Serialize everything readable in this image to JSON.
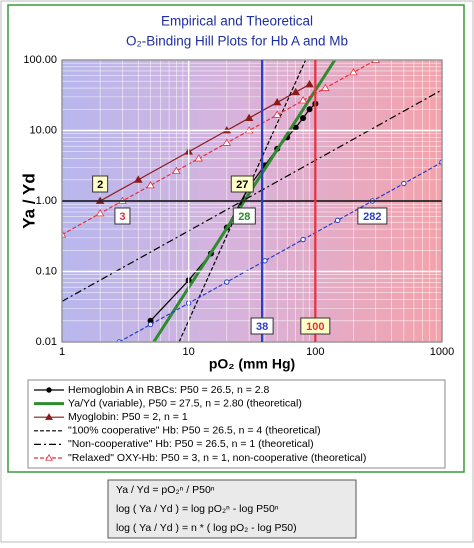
{
  "chart_data": {
    "type": "line",
    "title": [
      "Empirical and Theoretical",
      "O₂-Binding Hill Plots for Hb A and Mb"
    ],
    "x_label": "pO₂ (mm Hg)",
    "y_label": "Ya / Yd",
    "log_x": true,
    "log_y": true,
    "grid": true,
    "minor_grid": true,
    "xlim": [
      1,
      1000
    ],
    "xticks": [
      1,
      10,
      100,
      1000
    ],
    "ylim": [
      0.01,
      100
    ],
    "yticks": [
      {
        "value": 0.01,
        "label": "0.01"
      },
      {
        "value": 0.1,
        "label": "0.10"
      },
      {
        "value": 1,
        "label": "1.00"
      },
      {
        "value": 10,
        "label": "10.00"
      },
      {
        "value": 100,
        "label": "100.00"
      }
    ],
    "series": [
      {
        "name": "Hemoglobin A in RBCs: P50 = 26.5, n = 2.8",
        "color": "#000000",
        "line_style": "solid",
        "marker": "circle",
        "x": [
          5,
          10,
          15,
          20,
          30,
          40,
          50,
          60,
          70,
          80,
          90,
          100
        ],
        "values": [
          0.02,
          0.075,
          0.18,
          0.42,
          1.6,
          3.2,
          5.5,
          8,
          11,
          15,
          20,
          24
        ]
      },
      {
        "name": "Ya/Yd (variable), P50 = 27.5, n = 2.80 (theoretical)",
        "color": "#2e8b2e",
        "line_style": "thick",
        "marker": "none",
        "x": [
          5.3,
          142.5
        ],
        "values": [
          0.01,
          100
        ]
      },
      {
        "name": "Myoglobin: P50 = 2, n = 1",
        "color": "#8b1a1a",
        "line_style": "solid",
        "marker": "triangle",
        "x": [
          2,
          4,
          10,
          20,
          30,
          50,
          70,
          90
        ],
        "values": [
          1,
          2,
          5,
          10,
          15,
          25,
          35,
          45
        ]
      },
      {
        "name": "\"100% cooperative\" Hb: P50 = 26.5, n = 4 (theoretical)",
        "color": "#000000",
        "line_style": "dashed",
        "marker": "none",
        "x": [
          8.4,
          83.8
        ],
        "values": [
          0.01,
          100
        ]
      },
      {
        "name": "\"Non-cooperative\" Hb: P50 = 26.5, n = 1 (theoretical)",
        "color": "#000000",
        "line_style": "dash-dot",
        "marker": "none",
        "x": [
          1,
          1000
        ],
        "values": [
          0.0377,
          37.7
        ]
      },
      {
        "name": "\"Relaxed\" OXY-Hb: P50 = 3, n = 1, non-cooperative (theoretical)",
        "color": "#e8303a",
        "line_style": "dashed",
        "marker": "open-triangle",
        "x": [
          1,
          2,
          3,
          5,
          8,
          12,
          20,
          30,
          50,
          80,
          120,
          200,
          300
        ],
        "values": [
          0.333,
          0.667,
          1,
          1.667,
          2.667,
          4,
          6.667,
          10,
          16.67,
          26.67,
          40,
          66.67,
          100
        ]
      },
      {
        "color": "#2a3fc8",
        "line_style": "dashed",
        "marker": "open-circle",
        "x": [
          2.82,
          5,
          10,
          20,
          40,
          80,
          150,
          282,
          500,
          1000
        ],
        "values": [
          0.01,
          0.0177,
          0.0355,
          0.0709,
          0.142,
          0.284,
          0.532,
          1,
          1.77,
          3.55
        ]
      }
    ],
    "vlines": [
      {
        "value": 38,
        "color": "#2a3fc8"
      },
      {
        "value": 100,
        "color": "#e8303a"
      }
    ],
    "annotations": [
      {
        "text": "2",
        "x": 2,
        "y": 1,
        "position": "above",
        "color": "#000000",
        "fill": "#ffffc8"
      },
      {
        "text": "3",
        "x": 3,
        "y": 1,
        "position": "below",
        "color": "#e8303a",
        "fill": "#ffffff"
      },
      {
        "text": "27",
        "x": 26.5,
        "y": 1,
        "position": "above",
        "color": "#000000",
        "fill": "#ffffc8"
      },
      {
        "text": "28",
        "x": 27.5,
        "y": 1,
        "position": "below",
        "color": "#2e8b2e",
        "fill": "#ffffff"
      },
      {
        "text": "282",
        "x": 282,
        "y": 1,
        "position": "below",
        "color": "#2a3fc8",
        "fill": "#ffffff"
      }
    ],
    "equations": [
      "Ya / Yd =  pO₂ⁿ / P50ⁿ",
      "log ( Ya / Yd ) =  log pO₂ⁿ - log P50ⁿ",
      "log ( Ya / Yd ) =  n * ( log pO₂ - log P50)"
    ]
  }
}
